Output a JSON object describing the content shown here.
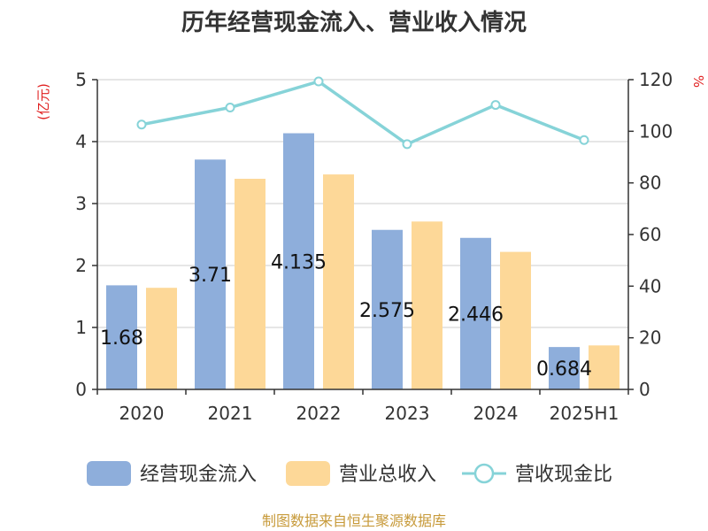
{
  "chart_data": {
    "type": "bar",
    "title": "历年经营现金流入、营业收入情况",
    "categories": [
      "2020",
      "2021",
      "2022",
      "2023",
      "2024",
      "2025H1"
    ],
    "y_left": {
      "unit": "(亿元)",
      "ticks": [
        "0",
        "1",
        "2",
        "3",
        "4",
        "5"
      ],
      "range": [
        0,
        5
      ]
    },
    "y_right": {
      "unit": "%",
      "ticks": [
        "0",
        "20",
        "40",
        "60",
        "80",
        "100",
        "120"
      ],
      "range": [
        0,
        120
      ]
    },
    "series": [
      {
        "name": "经营现金流入",
        "type": "bar",
        "axis": "left",
        "color": "#8eaedb",
        "values": [
          1.68,
          3.71,
          4.135,
          2.575,
          2.446,
          0.684
        ],
        "labels": [
          "1.68",
          "3.71",
          "4.135",
          "2.575",
          "2.446",
          "0.684"
        ]
      },
      {
        "name": "营业总收入",
        "type": "bar",
        "axis": "left",
        "color": "#fdd898",
        "values": [
          1.64,
          3.4,
          3.47,
          2.71,
          2.22,
          0.71
        ]
      },
      {
        "name": "营收现金比",
        "type": "line",
        "axis": "right",
        "color": "#86d3d8",
        "values": [
          102.6,
          109.2,
          119.3,
          95.0,
          110.2,
          96.6
        ]
      }
    ],
    "grid": true,
    "legend_position": "bottom"
  },
  "source": "制图数据来自恒生聚源数据库"
}
